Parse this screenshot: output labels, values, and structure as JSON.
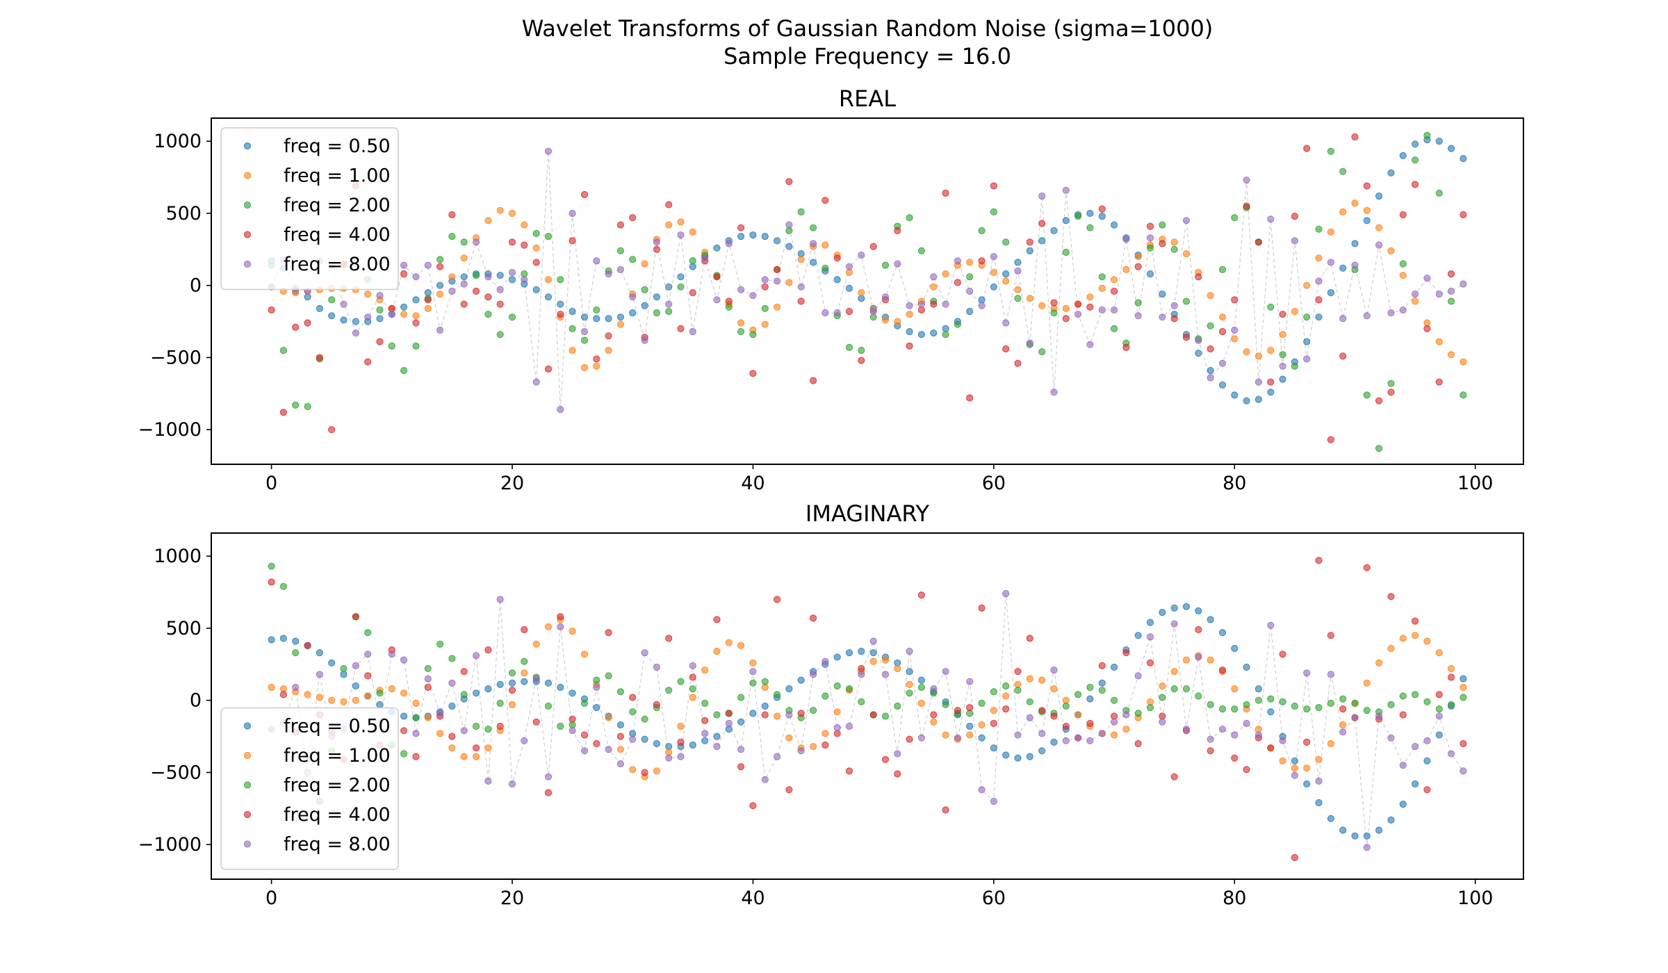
{
  "figure": {
    "title_line1": "Wavelet Transforms of Gaussian Random Noise (sigma=1000)",
    "title_line2": "Sample Frequency = 16.0"
  },
  "chart_data": [
    {
      "type": "scatter",
      "title": "REAL",
      "xlabel": "",
      "ylabel": "",
      "xlim": [
        -5,
        104
      ],
      "ylim": [
        -1240,
        1160
      ],
      "xticks": [
        "0",
        "20",
        "40",
        "60",
        "80",
        "100"
      ],
      "yticks": [
        "1000",
        "500",
        "0",
        "−500",
        "−1000"
      ],
      "legend_position": "upper-left",
      "connecting_line": "dashed light grey through the freq = 8.00 series",
      "series": [
        {
          "name": "freq = 0.50",
          "color": "#1f77b4",
          "values": [
            170,
            120,
            -40,
            -80,
            -160,
            -210,
            -240,
            -250,
            -250,
            -230,
            -200,
            -150,
            -100,
            -50,
            0,
            30,
            60,
            80,
            80,
            70,
            40,
            10,
            -30,
            -80,
            -130,
            -180,
            -220,
            -230,
            -230,
            -220,
            -190,
            -140,
            -80,
            -10,
            60,
            130,
            200,
            260,
            310,
            340,
            350,
            340,
            310,
            270,
            220,
            160,
            100,
            40,
            -20,
            -90,
            -160,
            -220,
            -280,
            -320,
            -340,
            -330,
            -300,
            -250,
            -180,
            -100,
            -10,
            80,
            160,
            240,
            310,
            380,
            450,
            490,
            500,
            480,
            420,
            330,
            210,
            80,
            -60,
            -200,
            -340,
            -470,
            -590,
            -690,
            -760,
            -800,
            -790,
            -740,
            -650,
            -530,
            -390,
            -220,
            -50,
            120,
            290,
            450,
            620,
            780,
            900,
            980,
            1010,
            1000,
            950,
            880
          ]
        },
        {
          "name": "freq = 1.00",
          "color": "#ff7f0e",
          "values": [
            -10,
            -40,
            -50,
            -40,
            -30,
            -20,
            -20,
            -30,
            -60,
            -100,
            -160,
            -200,
            -210,
            -160,
            -60,
            60,
            190,
            330,
            450,
            520,
            500,
            420,
            260,
            40,
            -220,
            -450,
            -570,
            -560,
            -450,
            -270,
            -60,
            150,
            320,
            420,
            440,
            370,
            230,
            60,
            -130,
            -260,
            -310,
            -270,
            -150,
            20,
            180,
            270,
            280,
            210,
            90,
            -50,
            -170,
            -240,
            -250,
            -200,
            -110,
            -10,
            80,
            140,
            160,
            140,
            90,
            30,
            -30,
            -90,
            -140,
            -160,
            -160,
            -130,
            -80,
            -20,
            40,
            110,
            200,
            280,
            320,
            300,
            220,
            90,
            -70,
            -220,
            -370,
            -460,
            -490,
            -450,
            -340,
            -180,
            0,
            190,
            370,
            510,
            570,
            520,
            400,
            240,
            70,
            -110,
            -260,
            -390,
            -480,
            -530
          ]
        },
        {
          "name": "freq = 2.00",
          "color": "#2ca02c",
          "values": [
            140,
            -450,
            -830,
            -840,
            -510,
            -100,
            140,
            170,
            40,
            -170,
            -420,
            -590,
            -420,
            -90,
            180,
            340,
            300,
            70,
            -200,
            -340,
            -220,
            80,
            360,
            340,
            40,
            -300,
            -380,
            -170,
            100,
            240,
            180,
            -30,
            -190,
            -180,
            -10,
            170,
            210,
            70,
            -150,
            -320,
            -340,
            -160,
            110,
            380,
            510,
            400,
            120,
            -210,
            -430,
            -450,
            -220,
            140,
            410,
            470,
            240,
            -110,
            -340,
            -270,
            60,
            380,
            510,
            300,
            -90,
            -410,
            -460,
            -190,
            230,
            480,
            400,
            60,
            -300,
            -400,
            -120,
            260,
            420,
            250,
            -110,
            -370,
            -280,
            110,
            470,
            540,
            300,
            -150,
            -480,
            -560,
            -220,
            390,
            930,
            790,
            110,
            -760,
            -1130,
            -680,
            150,
            870,
            1040,
            640,
            -110,
            -760
          ]
        },
        {
          "name": "freq = 4.00",
          "color": "#d62728",
          "values": [
            -170,
            -880,
            -290,
            -260,
            -500,
            -1000,
            150,
            690,
            -530,
            -390,
            -160,
            80,
            -260,
            -100,
            130,
            490,
            -130,
            -40,
            -80,
            -130,
            300,
            280,
            160,
            -580,
            -200,
            310,
            630,
            -510,
            -350,
            420,
            470,
            -360,
            250,
            560,
            -300,
            -50,
            170,
            60,
            -110,
            400,
            -610,
            -10,
            110,
            720,
            -110,
            -660,
            590,
            190,
            -180,
            -520,
            270,
            -100,
            380,
            -420,
            -170,
            -130,
            640,
            20,
            -780,
            170,
            690,
            -440,
            -540,
            300,
            430,
            -120,
            -230,
            -130,
            -150,
            530,
            -40,
            -430,
            130,
            410,
            290,
            -230,
            -360,
            60,
            -440,
            -320,
            -100,
            550,
            300,
            -670,
            -200,
            480,
            950,
            -100,
            -1070,
            -490,
            1030,
            690,
            -800,
            -740,
            490,
            700,
            -300,
            -670,
            80,
            490
          ]
        },
        {
          "name": "freq = 8.00",
          "color": "#9467bd",
          "values": [
            -10,
            180,
            -20,
            -40,
            170,
            140,
            -130,
            -330,
            -220,
            -70,
            -200,
            140,
            60,
            140,
            -310,
            -40,
            10,
            300,
            60,
            -30,
            90,
            40,
            -670,
            930,
            -860,
            500,
            -320,
            170,
            80,
            110,
            -80,
            -380,
            300,
            -130,
            350,
            -320,
            190,
            -100,
            290,
            -30,
            -70,
            40,
            30,
            420,
            -10,
            290,
            -190,
            -190,
            130,
            210,
            -180,
            -80,
            150,
            -140,
            -130,
            60,
            -130,
            170,
            -40,
            -140,
            200,
            -260,
            100,
            -400,
            620,
            -740,
            660,
            -200,
            -410,
            -170,
            -170,
            320,
            -210,
            330,
            -220,
            -140,
            450,
            -380,
            -640,
            -540,
            -310,
            730,
            -670,
            460,
            -560,
            310,
            -510,
            30,
            160,
            -230,
            140,
            -210,
            280,
            -190,
            -170,
            -60,
            50,
            -60,
            -40,
            10
          ]
        }
      ]
    },
    {
      "type": "scatter",
      "title": "IMAGINARY",
      "xlabel": "",
      "ylabel": "",
      "xlim": [
        -5,
        104
      ],
      "ylim": [
        -1240,
        1160
      ],
      "xticks": [
        "0",
        "20",
        "40",
        "60",
        "80",
        "100"
      ],
      "yticks": [
        "1000",
        "500",
        "0",
        "−500",
        "−1000"
      ],
      "legend_position": "lower-left",
      "connecting_line": "dashed light grey through the freq = 8.00 series",
      "series": [
        {
          "name": "freq = 0.50",
          "color": "#1f77b4",
          "values": [
            420,
            430,
            410,
            380,
            330,
            260,
            180,
            100,
            30,
            -30,
            -80,
            -110,
            -120,
            -110,
            -80,
            -40,
            10,
            50,
            80,
            110,
            120,
            130,
            130,
            120,
            90,
            50,
            10,
            -50,
            -110,
            -170,
            -230,
            -270,
            -300,
            -320,
            -320,
            -310,
            -280,
            -250,
            -200,
            -150,
            -90,
            -40,
            20,
            80,
            140,
            200,
            250,
            300,
            330,
            340,
            330,
            300,
            260,
            200,
            140,
            60,
            -10,
            -100,
            -180,
            -260,
            -330,
            -380,
            -400,
            -390,
            -350,
            -290,
            -200,
            -100,
            10,
            120,
            230,
            350,
            450,
            540,
            610,
            640,
            650,
            620,
            560,
            470,
            360,
            230,
            80,
            -80,
            -250,
            -420,
            -580,
            -710,
            -820,
            -900,
            -940,
            -940,
            -900,
            -830,
            -720,
            -580,
            -420,
            -240,
            -40,
            150
          ]
        },
        {
          "name": "freq = 1.00",
          "color": "#ff7f0e",
          "values": [
            90,
            80,
            60,
            40,
            20,
            0,
            -10,
            0,
            30,
            70,
            80,
            50,
            -20,
            -120,
            -230,
            -330,
            -390,
            -390,
            -330,
            -210,
            -30,
            190,
            390,
            510,
            560,
            480,
            320,
            110,
            -120,
            -340,
            -480,
            -530,
            -490,
            -360,
            -180,
            20,
            210,
            340,
            400,
            380,
            260,
            90,
            -110,
            -260,
            -330,
            -320,
            -230,
            -80,
            70,
            200,
            270,
            280,
            220,
            110,
            -20,
            -150,
            -240,
            -270,
            -240,
            -170,
            -70,
            30,
            110,
            150,
            140,
            80,
            0,
            -100,
            -180,
            -230,
            -240,
            -200,
            -120,
            -10,
            100,
            200,
            280,
            310,
            280,
            200,
            80,
            -60,
            -200,
            -330,
            -420,
            -470,
            -470,
            -410,
            -300,
            -170,
            -20,
            120,
            260,
            360,
            430,
            450,
            410,
            330,
            220,
            90
          ]
        },
        {
          "name": "freq = 2.00",
          "color": "#2ca02c",
          "values": [
            930,
            790,
            330,
            -400,
            -700,
            -350,
            220,
            580,
            470,
            50,
            -310,
            -370,
            -120,
            220,
            390,
            290,
            40,
            -180,
            -200,
            -20,
            190,
            270,
            160,
            -40,
            -180,
            -170,
            -20,
            140,
            170,
            60,
            -80,
            -130,
            -50,
            70,
            130,
            80,
            -20,
            -100,
            -90,
            20,
            120,
            130,
            40,
            -70,
            -120,
            -70,
            30,
            100,
            80,
            -10,
            -100,
            -110,
            -40,
            50,
            90,
            50,
            -30,
            -90,
            -90,
            -20,
            60,
            100,
            70,
            -10,
            -80,
            -90,
            -40,
            40,
            90,
            70,
            0,
            -70,
            -90,
            -50,
            20,
            80,
            80,
            30,
            -30,
            -60,
            -60,
            -30,
            0,
            10,
            -10,
            -40,
            -60,
            -50,
            -20,
            10,
            -20,
            -70,
            -80,
            -30,
            30,
            40,
            -10,
            -60,
            -30,
            20
          ]
        },
        {
          "name": "freq = 4.00",
          "color": "#d62728",
          "values": [
            820,
            40,
            -220,
            380,
            -100,
            -220,
            -410,
            580,
            170,
            -310,
            350,
            -210,
            -390,
            90,
            -110,
            -250,
            200,
            -330,
            350,
            -180,
            70,
            490,
            -150,
            -640,
            580,
            -130,
            -240,
            -300,
            470,
            -250,
            20,
            -500,
            -30,
            430,
            -290,
            160,
            -140,
            560,
            -90,
            -460,
            -730,
            -100,
            700,
            -620,
            -90,
            570,
            -310,
            -230,
            -490,
            220,
            -100,
            -410,
            -510,
            -270,
            730,
            -100,
            -760,
            -70,
            -50,
            640,
            -160,
            -60,
            200,
            430,
            -70,
            -110,
            -180,
            -260,
            -160,
            240,
            -110,
            330,
            -300,
            260,
            -110,
            -530,
            -210,
            490,
            -350,
            210,
            -400,
            -480,
            -260,
            -330,
            320,
            -1090,
            -290,
            970,
            450,
            -60,
            -120,
            920,
            -130,
            720,
            -100,
            550,
            -620,
            40,
            160,
            -300
          ]
        },
        {
          "name": "freq = 8.00",
          "color": "#9467bd",
          "values": [
            -200,
            -160,
            90,
            -500,
            180,
            -250,
            -200,
            240,
            320,
            -160,
            320,
            280,
            -230,
            150,
            -90,
            120,
            -210,
            310,
            -560,
            700,
            -580,
            -280,
            150,
            -530,
            510,
            -210,
            -350,
            90,
            -340,
            -440,
            -270,
            330,
            230,
            -400,
            -390,
            240,
            -230,
            -320,
            -160,
            -340,
            200,
            -550,
            -390,
            -100,
            -350,
            180,
            270,
            -190,
            -180,
            180,
            410,
            180,
            -370,
            340,
            -260,
            80,
            200,
            -260,
            130,
            -620,
            -700,
            740,
            -240,
            -120,
            -230,
            210,
            -280,
            -260,
            -280,
            -230,
            -150,
            -100,
            170,
            440,
            -150,
            530,
            -200,
            300,
            -270,
            -200,
            -240,
            -160,
            -240,
            520,
            -280,
            -520,
            190,
            -560,
            180,
            -220,
            -120,
            -1020,
            -110,
            -260,
            -450,
            -320,
            -280,
            -110,
            -370,
            -490
          ]
        }
      ]
    }
  ]
}
